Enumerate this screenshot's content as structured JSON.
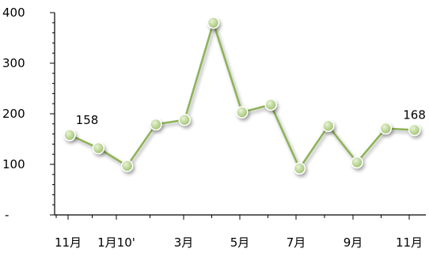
{
  "chart_data": {
    "type": "line",
    "title": "",
    "xlabel": "",
    "ylabel": "",
    "ylim": [
      0,
      400
    ],
    "yticks": [
      {
        "value": 0,
        "label": "-"
      },
      {
        "value": 100,
        "label": "100"
      },
      {
        "value": 200,
        "label": "200"
      },
      {
        "value": 300,
        "label": "300"
      },
      {
        "value": 400,
        "label": "400"
      }
    ],
    "x_tick_labels": [
      "11月",
      "1月10'",
      "3月",
      "5月",
      "7月",
      "9月",
      "11月"
    ],
    "series": [
      {
        "values": [
          158,
          132,
          97,
          179,
          188,
          380,
          203,
          218,
          92,
          176,
          104,
          171,
          168
        ]
      }
    ],
    "data_labels": [
      {
        "index": 0,
        "text": "158"
      },
      {
        "index": 12,
        "text": "168"
      }
    ],
    "grid": false,
    "legend": "none",
    "colors": {
      "line": "#8db255",
      "marker_fill": "#9cc06a",
      "marker_highlight": "#e8f3d6",
      "marker_stroke": "#ffffff",
      "axis": "#000000"
    }
  }
}
